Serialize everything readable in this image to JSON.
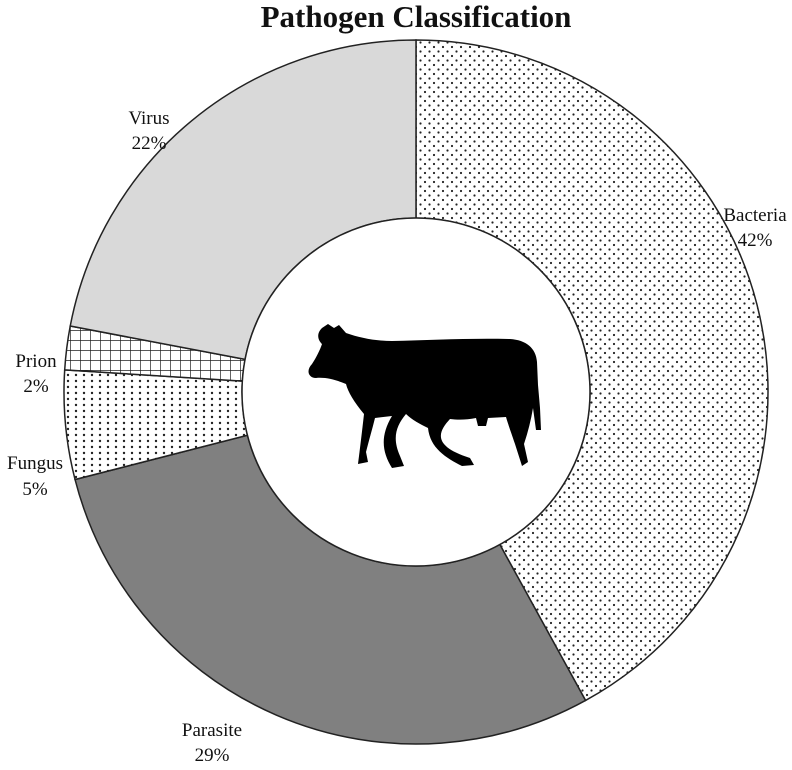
{
  "chart_data": {
    "type": "pie",
    "style": "donut",
    "title": "Pathogen Classification",
    "slices": [
      {
        "name": "Bacteria",
        "value": 42,
        "label": "42%",
        "fill": "dots"
      },
      {
        "name": "Parasite",
        "value": 29,
        "label": "29%",
        "fill": "#808080"
      },
      {
        "name": "Fungus",
        "value": 5,
        "label": "5%",
        "fill": "vertical-dots"
      },
      {
        "name": "Prion",
        "value": 2,
        "label": "2%",
        "fill": "grid"
      },
      {
        "name": "Virus",
        "value": 22,
        "label": "22%",
        "fill": "#d9d9d9"
      }
    ],
    "center_icon": "cow-icon"
  }
}
